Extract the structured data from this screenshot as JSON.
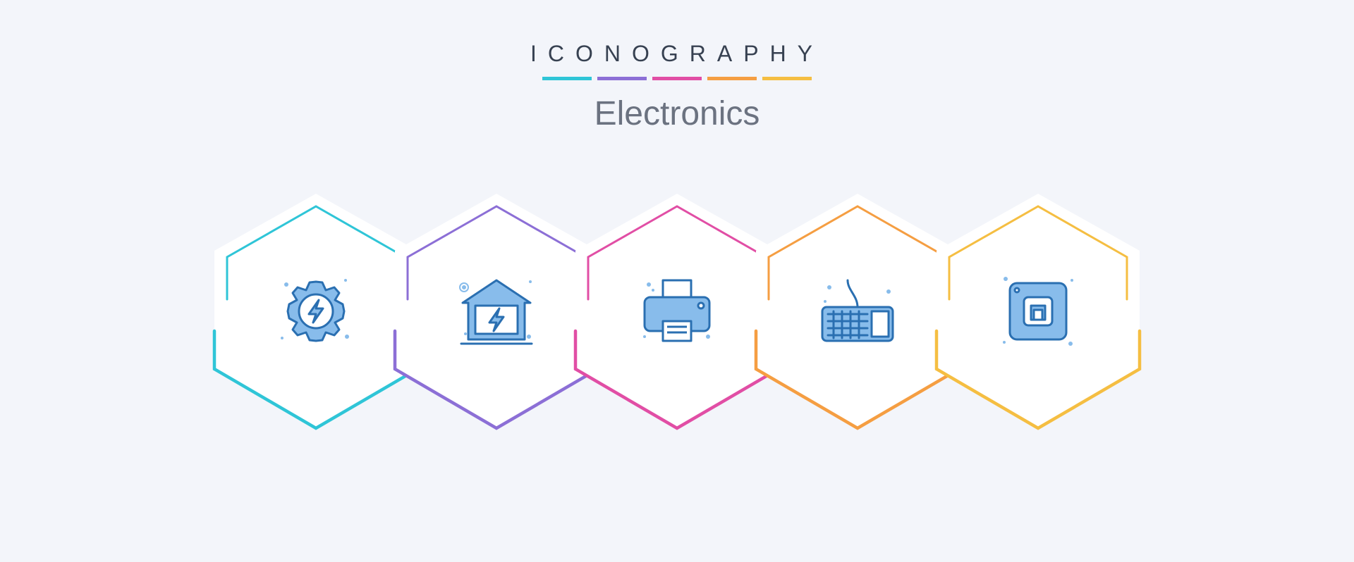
{
  "header": {
    "title": "ICONOGRAPHY",
    "subtitle": "Electronics"
  },
  "palette": {
    "page_bg": "#f3f5fa",
    "icon_fill": "#88bceb",
    "icon_stroke": "#2a6fb1",
    "title_color": "#374151",
    "subtitle_color": "#6b7280",
    "hex_white": "#ffffff",
    "segments": [
      "#2fc5d7",
      "#8c6fd6",
      "#e14ea5",
      "#f59e42",
      "#f5be42"
    ]
  },
  "hexagons": [
    {
      "name": "gear-power",
      "accent": "#2fc5d7",
      "icon": "gear-lightning-icon"
    },
    {
      "name": "power-house",
      "accent": "#8c6fd6",
      "icon": "house-lightning-icon"
    },
    {
      "name": "printer",
      "accent": "#e14ea5",
      "icon": "printer-icon"
    },
    {
      "name": "keyboard",
      "accent": "#f59e42",
      "icon": "keyboard-icon"
    },
    {
      "name": "chip",
      "accent": "#f5be42",
      "icon": "chip-icon"
    }
  ]
}
